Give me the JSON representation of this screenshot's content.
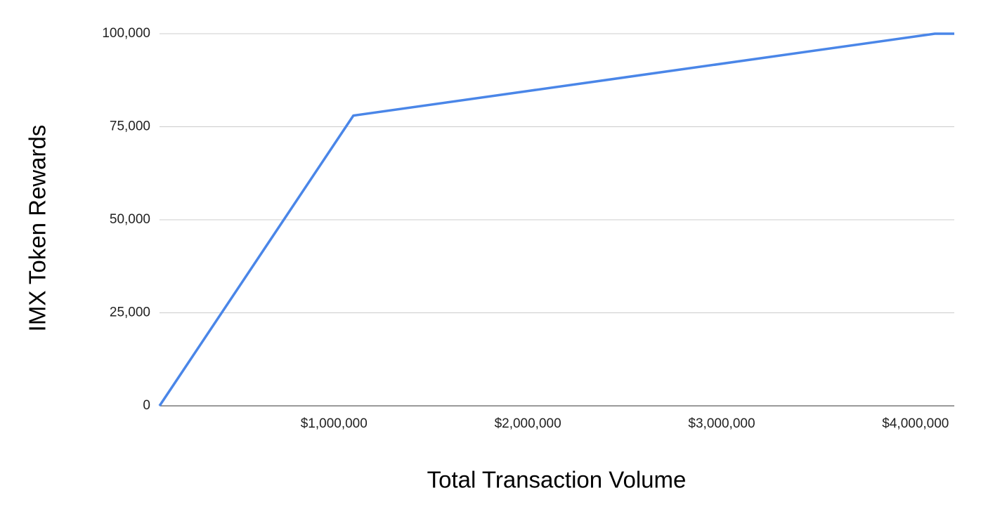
{
  "chart_data": {
    "type": "line",
    "x_label": "Total Transaction Volume",
    "y_label": "IMX Token Rewards",
    "x": [
      100000,
      1100000,
      4100000,
      4200000
    ],
    "series": [
      {
        "name": "IMX Token Rewards",
        "color": "#4a86e8",
        "values": [
          0,
          78000,
          100000,
          100000
        ]
      }
    ],
    "xlim": [
      100000,
      4200000
    ],
    "xticks": [
      {
        "value": 1000000,
        "label": "$1,000,000"
      },
      {
        "value": 2000000,
        "label": "$2,000,000"
      },
      {
        "value": 3000000,
        "label": "$3,000,000"
      },
      {
        "value": 4000000,
        "label": "$4,000,000"
      }
    ],
    "ylim": [
      0,
      100000
    ],
    "yticks": [
      0,
      {
        "value": 25000,
        "label": "25,000"
      },
      {
        "value": 50000,
        "label": "50,000"
      },
      {
        "value": 75000,
        "label": "75,000"
      },
      {
        "value": 100000,
        "label": "100,000"
      }
    ],
    "grid": true
  }
}
